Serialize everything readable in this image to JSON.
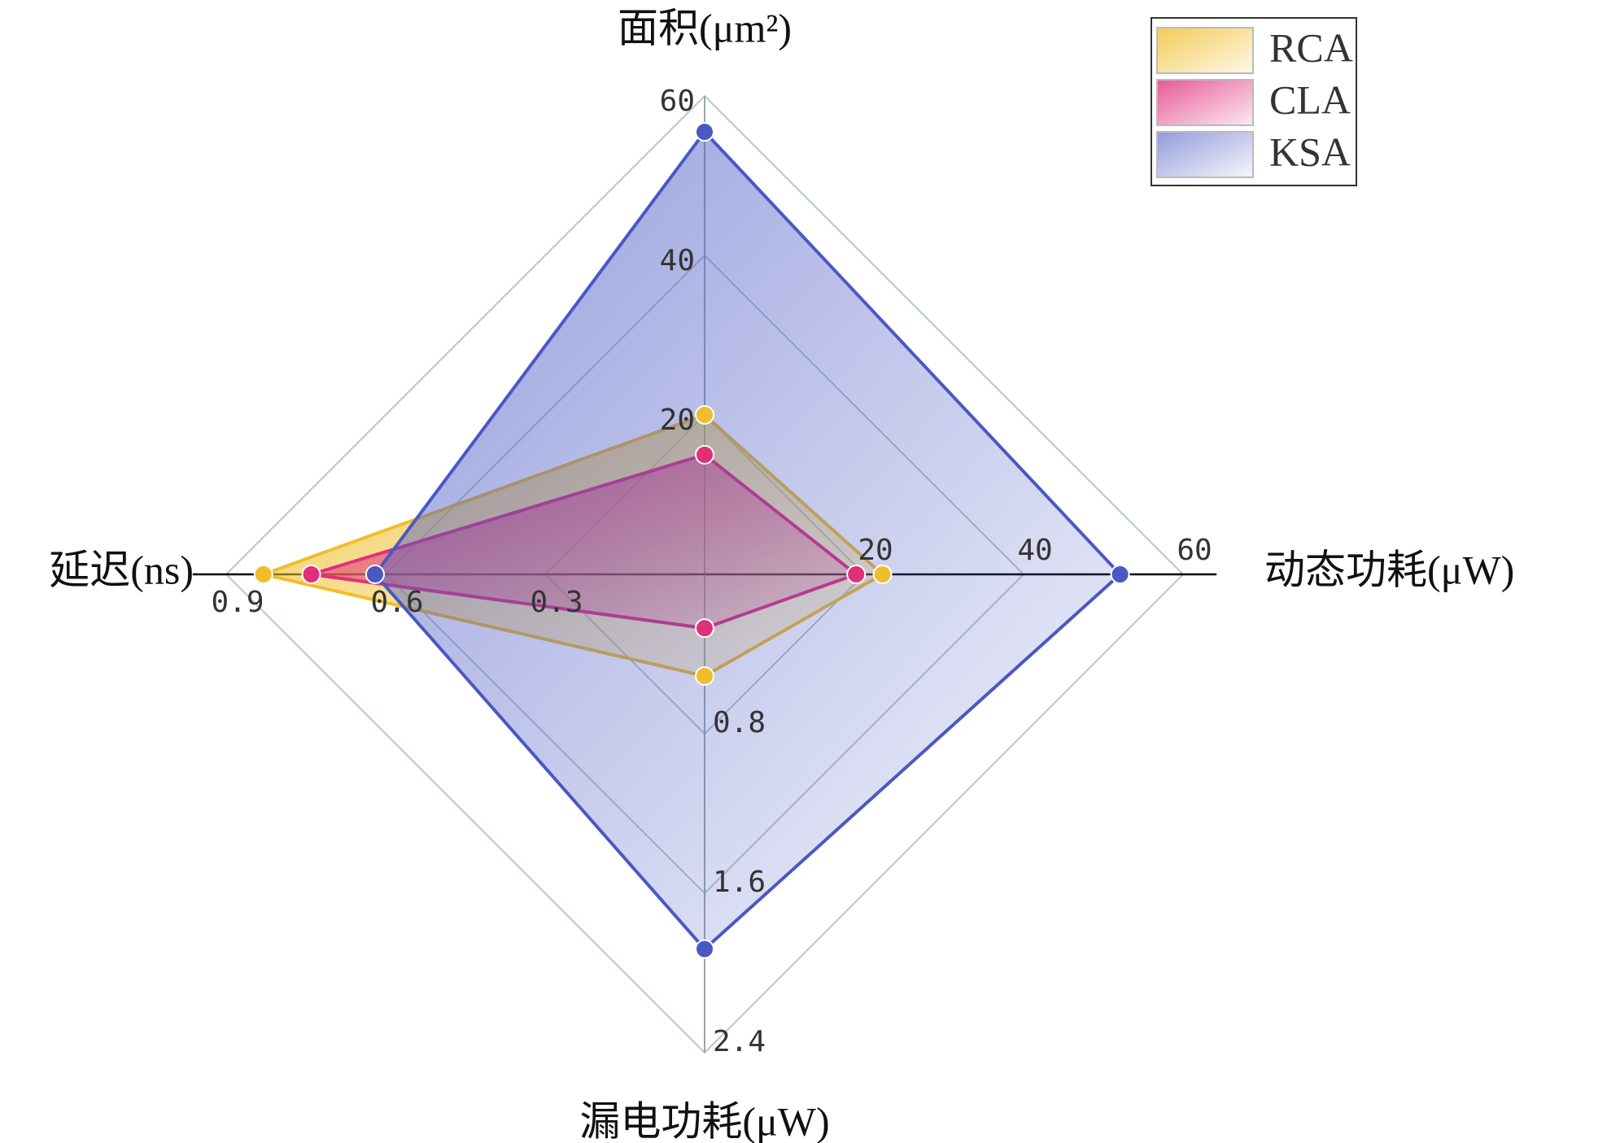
{
  "chart_data": {
    "type": "radar",
    "axes": [
      {
        "label": "面积(μm²)",
        "lim": [
          0,
          60
        ],
        "ticks": [
          20,
          40,
          60
        ]
      },
      {
        "label": "动态功耗(μW)",
        "lim": [
          0,
          60
        ],
        "ticks": [
          20,
          40,
          60
        ]
      },
      {
        "label": "漏电功耗(μW)",
        "lim": [
          0,
          2.4
        ],
        "ticks": [
          0.8,
          1.6,
          2.4
        ]
      },
      {
        "label": "延迟(ns)",
        "lim": [
          0,
          0.9
        ],
        "ticks": [
          0.3,
          0.6,
          0.9
        ]
      }
    ],
    "series": [
      {
        "name": "RCA",
        "color": "#f0be2c",
        "values": [
          20,
          22.3,
          0.51,
          0.83
        ]
      },
      {
        "name": "CLA",
        "color": "#e0307a",
        "values": [
          15,
          19,
          0.27,
          0.74
        ]
      },
      {
        "name": "KSA",
        "color": "#4a58c4",
        "values": [
          55.5,
          52.1,
          1.88,
          0.62
        ]
      }
    ],
    "legend": "top-right"
  }
}
